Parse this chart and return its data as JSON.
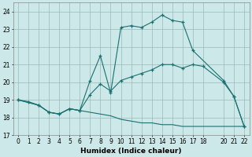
{
  "xlabel": "Humidex (Indice chaleur)",
  "background_color": "#cce8e8",
  "grid_color": "#99bbbb",
  "line_color": "#1a7070",
  "ylim": [
    17,
    24.5
  ],
  "xlim": [
    -0.5,
    22.5
  ],
  "yticks": [
    17,
    18,
    19,
    20,
    21,
    22,
    23,
    24
  ],
  "xticks": [
    0,
    1,
    2,
    3,
    4,
    5,
    6,
    7,
    8,
    9,
    10,
    11,
    12,
    13,
    14,
    15,
    16,
    17,
    18,
    20,
    21,
    22
  ],
  "line1_x": [
    0,
    1,
    2,
    3,
    4,
    5,
    6,
    7,
    8,
    9,
    10,
    11,
    12,
    13,
    14,
    15,
    16,
    17,
    20,
    21,
    22
  ],
  "line1_y": [
    19.0,
    18.9,
    18.7,
    18.3,
    18.2,
    18.5,
    18.4,
    20.1,
    21.5,
    19.4,
    23.1,
    23.2,
    23.1,
    23.4,
    23.8,
    23.5,
    23.4,
    21.8,
    20.1,
    19.2,
    17.5
  ],
  "line2_x": [
    0,
    2,
    3,
    4,
    5,
    6,
    7,
    8,
    9,
    10,
    11,
    12,
    13,
    14,
    15,
    16,
    17,
    18,
    20,
    21,
    22
  ],
  "line2_y": [
    19.0,
    18.7,
    18.3,
    18.2,
    18.5,
    18.4,
    19.3,
    19.9,
    19.5,
    20.1,
    20.3,
    20.5,
    20.7,
    21.0,
    21.0,
    20.8,
    21.0,
    20.9,
    20.0,
    19.2,
    17.5
  ],
  "line3_x": [
    0,
    2,
    3,
    4,
    5,
    6,
    7,
    8,
    9,
    10,
    11,
    12,
    13,
    14,
    15,
    16,
    17,
    18,
    20,
    21,
    22
  ],
  "line3_y": [
    19.0,
    18.7,
    18.3,
    18.2,
    18.5,
    18.4,
    18.3,
    18.2,
    18.1,
    17.9,
    17.8,
    17.7,
    17.7,
    17.6,
    17.6,
    17.5,
    17.5,
    17.5,
    17.5,
    17.5,
    17.5
  ]
}
